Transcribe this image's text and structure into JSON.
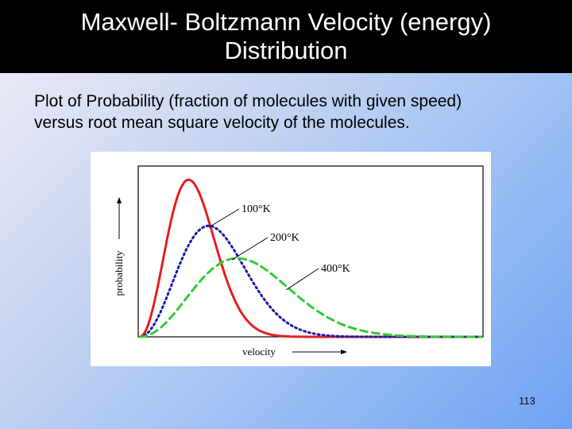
{
  "slide": {
    "title_line1": "Maxwell- Boltzmann Velocity (energy)",
    "title_line2": "Distribution",
    "subtitle_line1": "Plot of Probability (fraction of molecules with given speed)",
    "subtitle_line2": "versus root mean square velocity of the molecules.",
    "page_number": "113"
  },
  "chart_data": {
    "type": "line",
    "xlabel": "velocity",
    "ylabel": "probability",
    "grid": false,
    "legend": "annotations",
    "x_range": [
      0,
      7
    ],
    "ylim": [
      0,
      1.0
    ],
    "series": [
      {
        "name": "100°K",
        "temperature": 100,
        "peak_x": 1.0,
        "peak_y": 0.92,
        "color": "#e02020",
        "style": "solid"
      },
      {
        "name": "200°K",
        "temperature": 200,
        "peak_x": 1.41,
        "peak_y": 0.65,
        "color": "#1a1aa8",
        "style": "dotted"
      },
      {
        "name": "400°K",
        "temperature": 400,
        "peak_x": 2.0,
        "peak_y": 0.46,
        "color": "#33cc33",
        "style": "dashed"
      }
    ]
  }
}
